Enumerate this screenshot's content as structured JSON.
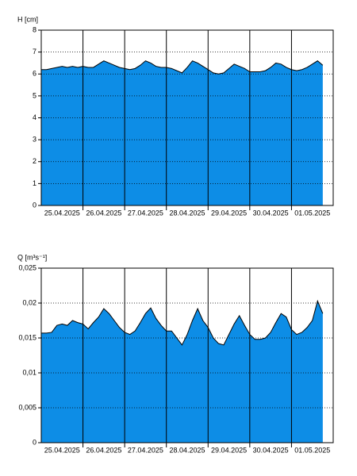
{
  "chart_data": [
    {
      "type": "area",
      "ylabel": "H [cm]",
      "color": "#0d8de6",
      "line_color": "#000000",
      "grid": true,
      "x": [
        0,
        0.125,
        0.25,
        0.375,
        0.5,
        0.625,
        0.75,
        0.875,
        1,
        1.125,
        1.25,
        1.375,
        1.5,
        1.625,
        1.75,
        1.875,
        2,
        2.125,
        2.25,
        2.375,
        2.5,
        2.625,
        2.75,
        2.875,
        3,
        3.125,
        3.25,
        3.375,
        3.5,
        3.625,
        3.75,
        3.875,
        4,
        4.125,
        4.25,
        4.375,
        4.5,
        4.625,
        4.75,
        4.875,
        5,
        5.125,
        5.25,
        5.375,
        5.5,
        5.625,
        5.75,
        5.875,
        6,
        6.125,
        6.25,
        6.375,
        6.5,
        6.625,
        6.75
      ],
      "values": [
        6.2,
        6.2,
        6.25,
        6.3,
        6.35,
        6.3,
        6.35,
        6.3,
        6.35,
        6.3,
        6.3,
        6.45,
        6.6,
        6.5,
        6.4,
        6.3,
        6.25,
        6.2,
        6.25,
        6.4,
        6.6,
        6.5,
        6.35,
        6.3,
        6.3,
        6.25,
        6.15,
        6.05,
        6.3,
        6.6,
        6.5,
        6.35,
        6.2,
        6.05,
        6.0,
        6.05,
        6.25,
        6.45,
        6.35,
        6.25,
        6.1,
        6.1,
        6.1,
        6.15,
        6.3,
        6.5,
        6.45,
        6.3,
        6.2,
        6.15,
        6.2,
        6.3,
        6.45,
        6.6,
        6.4
      ],
      "xlim": [
        0,
        7
      ],
      "ylim": [
        0,
        8
      ],
      "yticks": [
        0,
        1,
        2,
        3,
        4,
        5,
        6,
        7,
        8
      ],
      "xgrid": [
        1,
        2,
        3,
        4,
        5,
        6
      ],
      "xticks": [
        {
          "value": 0.5,
          "label": "25.04.2025"
        },
        {
          "value": 1.5,
          "label": "26.04.2025"
        },
        {
          "value": 2.5,
          "label": "27.04.2025"
        },
        {
          "value": 3.5,
          "label": "28.04.2025"
        },
        {
          "value": 4.5,
          "label": "29.04.2025"
        },
        {
          "value": 5.5,
          "label": "30.04.2025"
        },
        {
          "value": 6.5,
          "label": "01.05.2025"
        }
      ]
    },
    {
      "type": "area",
      "ylabel": "Q [m³s⁻¹]",
      "color": "#0d8de6",
      "line_color": "#000000",
      "grid": true,
      "x": [
        0,
        0.125,
        0.25,
        0.375,
        0.5,
        0.625,
        0.75,
        0.875,
        1,
        1.125,
        1.25,
        1.375,
        1.5,
        1.625,
        1.75,
        1.875,
        2,
        2.125,
        2.25,
        2.375,
        2.5,
        2.625,
        2.75,
        2.875,
        3,
        3.125,
        3.25,
        3.375,
        3.5,
        3.625,
        3.75,
        3.875,
        4,
        4.125,
        4.25,
        4.375,
        4.5,
        4.625,
        4.75,
        4.875,
        5,
        5.125,
        5.25,
        5.375,
        5.5,
        5.625,
        5.75,
        5.875,
        6,
        6.125,
        6.25,
        6.375,
        6.5,
        6.625,
        6.75
      ],
      "values": [
        0.0157,
        0.0157,
        0.0158,
        0.0168,
        0.017,
        0.0168,
        0.0175,
        0.0172,
        0.017,
        0.0163,
        0.0172,
        0.018,
        0.0192,
        0.0185,
        0.0175,
        0.0165,
        0.0158,
        0.0155,
        0.016,
        0.0172,
        0.0185,
        0.0193,
        0.0178,
        0.0168,
        0.016,
        0.016,
        0.015,
        0.014,
        0.0155,
        0.0175,
        0.0192,
        0.0175,
        0.0165,
        0.015,
        0.0142,
        0.014,
        0.0155,
        0.017,
        0.0182,
        0.0168,
        0.0155,
        0.0148,
        0.0148,
        0.015,
        0.0158,
        0.0172,
        0.0185,
        0.018,
        0.0162,
        0.0155,
        0.0158,
        0.0165,
        0.0175,
        0.0203,
        0.0185
      ],
      "xlim": [
        0,
        7
      ],
      "ylim": [
        0,
        0.025
      ],
      "yticks": [
        0,
        {
          "value": 0.005,
          "label": "0,005"
        },
        {
          "value": 0.01,
          "label": "0,01"
        },
        {
          "value": 0.015,
          "label": "0,015"
        },
        {
          "value": 0.02,
          "label": "0,02"
        },
        {
          "value": 0.025,
          "label": "0,025"
        }
      ],
      "xgrid": [
        1,
        2,
        3,
        4,
        5,
        6
      ],
      "xticks": [
        {
          "value": 0.5,
          "label": "25.04.2025"
        },
        {
          "value": 1.5,
          "label": "26.04.2025"
        },
        {
          "value": 2.5,
          "label": "27.04.2025"
        },
        {
          "value": 3.5,
          "label": "28.04.2025"
        },
        {
          "value": 4.5,
          "label": "29.04.2025"
        },
        {
          "value": 5.5,
          "label": "30.04.2025"
        },
        {
          "value": 6.5,
          "label": "01.05.2025"
        }
      ]
    }
  ]
}
